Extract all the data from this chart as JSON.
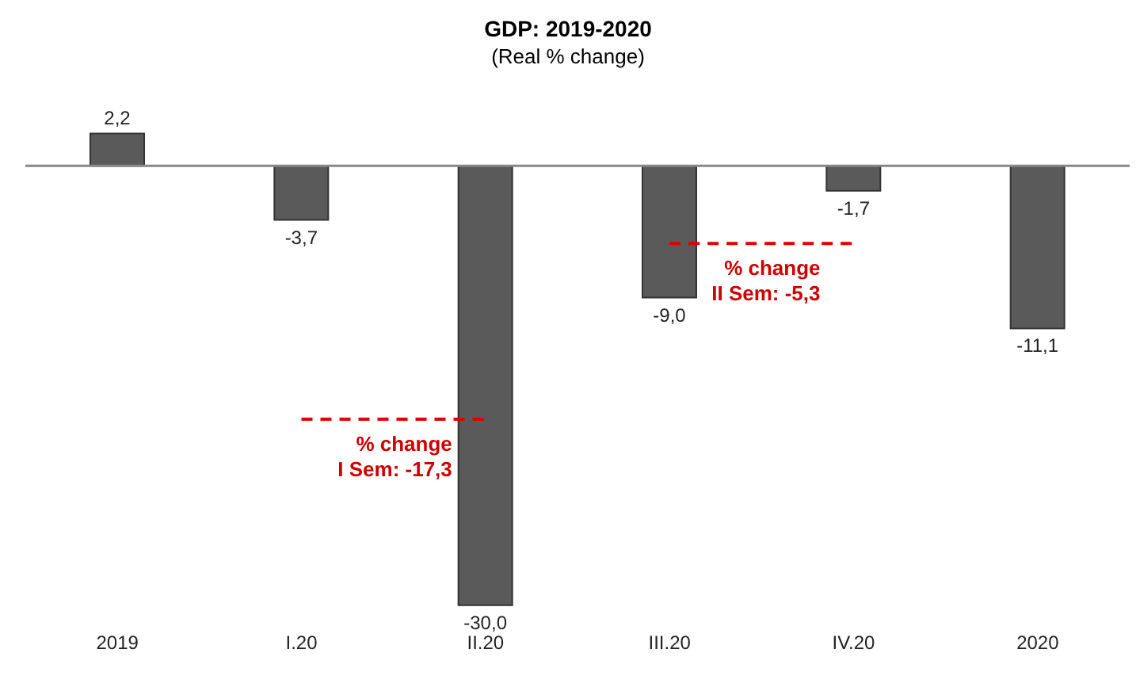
{
  "chart_data": {
    "type": "bar",
    "title": "GDP: 2019-2020",
    "subtitle": "(Real % change)",
    "categories": [
      "2019",
      "I.20",
      "II.20",
      "III.20",
      "IV.20",
      "2020"
    ],
    "series": [
      {
        "color": "#5a5a5a",
        "values": [
          2.2,
          -3.7,
          -30.0,
          -9.0,
          -1.7,
          -11.1
        ],
        "value_labels": [
          "2,2",
          "-3,7",
          "-30,0",
          "-9,0",
          "-1,7",
          "-11,1"
        ]
      },
      {
        "type": "line",
        "color": "#e00000",
        "line_style": "dashed",
        "values": [
          null,
          -17.3,
          -17.3,
          null,
          null,
          null
        ]
      },
      {
        "type": "line",
        "color": "#e00000",
        "line_style": "dashed",
        "values": [
          null,
          null,
          null,
          -5.3,
          -5.3,
          null
        ]
      }
    ],
    "annotations": [
      {
        "text": "% change\nI Sem: -17,3",
        "x": "II.20",
        "y": -17.3
      },
      {
        "text": "% change\nII Sem: -5,3",
        "x": "IV.20",
        "y": -5.3
      }
    ],
    "grid": false,
    "legend": false
  }
}
